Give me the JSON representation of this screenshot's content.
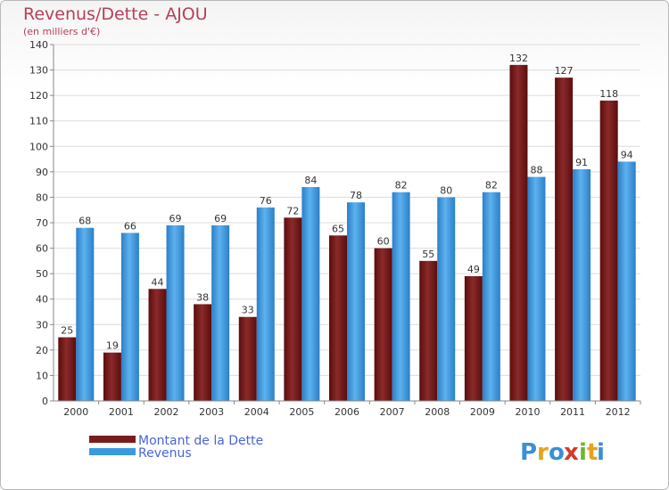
{
  "chart_data": {
    "type": "bar",
    "title": "Revenus/Dette - AJOU",
    "subtitle": "(en milliers d'€)",
    "categories": [
      "2000",
      "2001",
      "2002",
      "2003",
      "2004",
      "2005",
      "2006",
      "2007",
      "2008",
      "2009",
      "2010",
      "2011",
      "2012"
    ],
    "series": [
      {
        "name": "Montant de la Dette",
        "color": "#7a1c1c",
        "values": [
          25,
          19,
          44,
          38,
          33,
          72,
          65,
          60,
          55,
          49,
          132,
          127,
          118
        ]
      },
      {
        "name": "Revenus",
        "color": "#3a9ae0",
        "values": [
          68,
          66,
          69,
          69,
          76,
          84,
          78,
          82,
          80,
          82,
          88,
          91,
          94
        ]
      }
    ],
    "ylim": [
      0,
      140
    ],
    "yticks": [
      0,
      10,
      20,
      30,
      40,
      50,
      60,
      70,
      80,
      90,
      100,
      110,
      120,
      130,
      140
    ],
    "grid": true,
    "legend_position": "bottom-left"
  },
  "logo": {
    "letters": [
      "P",
      "r",
      "o",
      "x",
      "i",
      "t",
      "i"
    ],
    "colors": [
      "#3a8fd8",
      "#e8a21a",
      "#3a8fd8",
      "#d63a2a",
      "#6ab82e",
      "#e8a21a",
      "#3a8fd8"
    ]
  }
}
